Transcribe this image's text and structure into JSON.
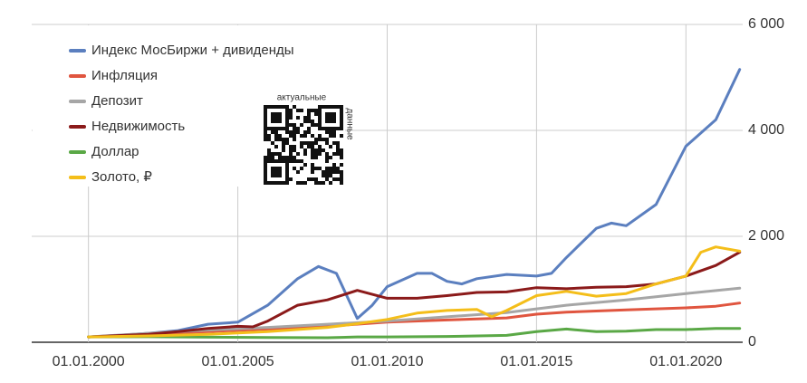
{
  "chart_data": {
    "type": "line",
    "xlim": [
      1998.1,
      2021.9
    ],
    "ylim": [
      0,
      6000
    ],
    "xticks": [
      {
        "value": 2000,
        "label": "01.01.2000"
      },
      {
        "value": 2005,
        "label": "01.01.2005"
      },
      {
        "value": 2010,
        "label": "01.01.2010"
      },
      {
        "value": 2015,
        "label": "01.01.2015"
      },
      {
        "value": 2020,
        "label": "01.01.2020"
      }
    ],
    "yticks": [
      0,
      {
        "value": 2000,
        "label": "2 000"
      },
      {
        "value": 4000,
        "label": "4 000"
      },
      {
        "value": 6000,
        "label": "6 000"
      }
    ],
    "grid": true,
    "legend": "upper left",
    "annotations": [
      "актуальные",
      "данные"
    ],
    "series": [
      {
        "name": "Индекс МосБиржи + дивиденды",
        "color": "#5b7fbf",
        "x": [
          2000,
          2001,
          2002,
          2003,
          2004,
          2005,
          2006,
          2007,
          2007.7,
          2008.3,
          2009,
          2009.5,
          2010,
          2011,
          2011.5,
          2012,
          2012.5,
          2013,
          2014,
          2015,
          2015.5,
          2016,
          2017,
          2017.5,
          2018,
          2019,
          2020,
          2021,
          2021.8
        ],
        "values": [
          100,
          130,
          170,
          220,
          340,
          380,
          700,
          1200,
          1430,
          1300,
          450,
          700,
          1050,
          1300,
          1300,
          1150,
          1100,
          1200,
          1280,
          1250,
          1300,
          1600,
          2150,
          2250,
          2200,
          2600,
          3700,
          4200,
          5150
        ]
      },
      {
        "name": "Инфляция",
        "color": "#e0553f",
        "x": [
          2000,
          2002,
          2004,
          2006,
          2008,
          2010,
          2012,
          2014,
          2015,
          2016,
          2018,
          2020,
          2021,
          2021.8
        ],
        "values": [
          100,
          150,
          200,
          250,
          300,
          380,
          420,
          460,
          530,
          570,
          610,
          650,
          680,
          740
        ]
      },
      {
        "name": "Депозит",
        "color": "#a6a6a6",
        "x": [
          2000,
          2002,
          2004,
          2006,
          2008,
          2010,
          2012,
          2014,
          2015,
          2016,
          2018,
          2020,
          2021.8
        ],
        "values": [
          100,
          170,
          230,
          280,
          340,
          400,
          480,
          560,
          630,
          700,
          800,
          920,
          1020
        ]
      },
      {
        "name": "Недвижимость",
        "color": "#8b1a1a",
        "x": [
          2000,
          2002,
          2003,
          2004,
          2005,
          2005.5,
          2006,
          2007,
          2008,
          2009,
          2010,
          2011,
          2012,
          2013,
          2014,
          2015,
          2016,
          2017,
          2018,
          2019,
          2020,
          2021,
          2021.8
        ],
        "values": [
          100,
          150,
          200,
          260,
          300,
          290,
          400,
          700,
          800,
          980,
          830,
          830,
          880,
          940,
          950,
          1030,
          1010,
          1040,
          1050,
          1100,
          1250,
          1450,
          1700
        ]
      },
      {
        "name": "Доллар",
        "color": "#5aa846",
        "x": [
          2000,
          2002,
          2004,
          2006,
          2008,
          2009,
          2010,
          2012,
          2014,
          2015,
          2016,
          2017,
          2018,
          2019,
          2020,
          2021,
          2021.8
        ],
        "values": [
          100,
          105,
          95,
          90,
          85,
          100,
          100,
          110,
          130,
          200,
          250,
          200,
          210,
          240,
          240,
          260,
          260
        ]
      },
      {
        "name": "Золото, ₽",
        "color": "#f4be1a",
        "x": [
          2000,
          2002,
          2004,
          2006,
          2008,
          2009,
          2010,
          2011,
          2012,
          2013,
          2013.5,
          2014,
          2015,
          2016,
          2017,
          2018,
          2019,
          2020,
          2020.5,
          2021,
          2021.8
        ],
        "values": [
          100,
          120,
          150,
          200,
          280,
          350,
          430,
          550,
          600,
          620,
          480,
          600,
          880,
          960,
          870,
          920,
          1100,
          1250,
          1700,
          1800,
          1720
        ]
      }
    ]
  }
}
